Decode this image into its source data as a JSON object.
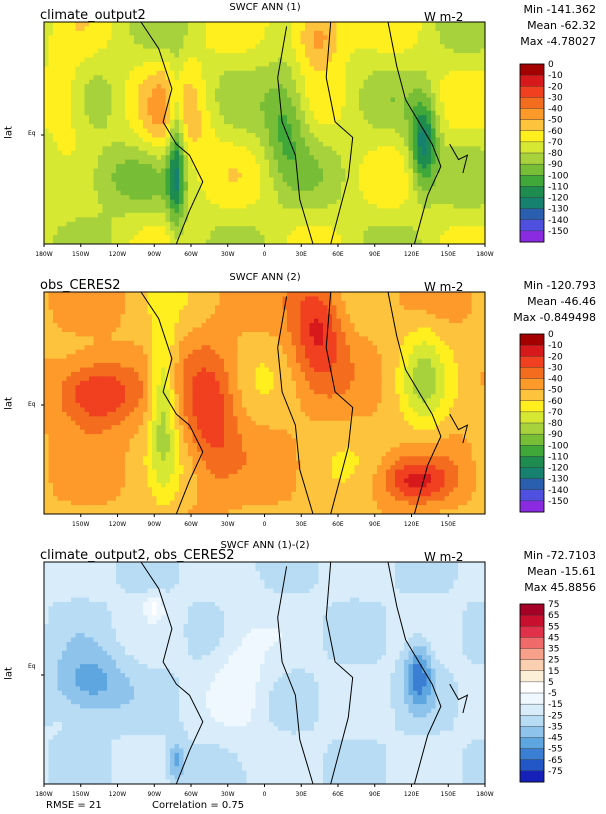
{
  "chart_data": [
    {
      "type": "heatmap",
      "left_title": "climate_output2",
      "title": "SWCF ANN (1)",
      "units": "W m-2",
      "stats": {
        "min": "Min -141.362",
        "mean": "Mean -62.32",
        "max": "Max -4.78027"
      },
      "ylabel": "lat",
      "eq_label": "Eq",
      "x_ticks": [
        "180W",
        "150W",
        "120W",
        "90W",
        "60W",
        "30W",
        "0",
        "30E",
        "60E",
        "90E",
        "120E",
        "150E",
        "180W"
      ],
      "colorbar": {
        "labels": [
          "0",
          "-10",
          "-20",
          "-30",
          "-40",
          "-50",
          "-60",
          "-70",
          "-80",
          "-90",
          "-100",
          "-110",
          "-120",
          "-130",
          "-140",
          "-150"
        ],
        "colors": [
          "#a50000",
          "#d7191c",
          "#f04020",
          "#f46d1e",
          "#fd9a2a",
          "#fdc33c",
          "#ffef1e",
          "#d6e832",
          "#a8d23c",
          "#78bd36",
          "#3fa838",
          "#1e8c4e",
          "#16816e",
          "#2a5fb0",
          "#4f4fe0",
          "#8a2be2"
        ]
      },
      "field": "abs"
    },
    {
      "type": "heatmap",
      "left_title": "obs_CERES2",
      "title": "SWCF ANN (2)",
      "units": "W m-2",
      "stats": {
        "min": "Min -120.793",
        "mean": "Mean -46.46",
        "max": "Max -0.849498"
      },
      "ylabel": "lat",
      "eq_label": "Eq",
      "x_ticks": [
        "150W",
        "120W",
        "90W",
        "60W",
        "30W",
        "0",
        "30E",
        "60E",
        "90E",
        "120E",
        "150E"
      ],
      "colorbar": {
        "labels": [
          "0",
          "-10",
          "-20",
          "-30",
          "-40",
          "-50",
          "-60",
          "-70",
          "-80",
          "-90",
          "-100",
          "-110",
          "-120",
          "-130",
          "-140",
          "-150"
        ],
        "colors": [
          "#a50000",
          "#d7191c",
          "#f04020",
          "#f46d1e",
          "#fd9a2a",
          "#fdc33c",
          "#ffef1e",
          "#d6e832",
          "#a8d23c",
          "#78bd36",
          "#3fa838",
          "#1e8c4e",
          "#16816e",
          "#2a5fb0",
          "#4f4fe0",
          "#8a2be2"
        ]
      },
      "field": "obs"
    },
    {
      "type": "heatmap",
      "left_title": "climate_output2, obs_CERES2",
      "title": "SWCF ANN (1)-(2)",
      "units": "W m-2",
      "stats": {
        "min": "Min -72.7103",
        "mean": "Mean -15.61",
        "max": "Max 45.8856"
      },
      "ylabel": "lat",
      "eq_label": "Eq",
      "x_ticks": [
        "180W",
        "150W",
        "120W",
        "90W",
        "60W",
        "30W",
        "0",
        "30E",
        "60E",
        "90E",
        "120E",
        "150E",
        "180W"
      ],
      "colorbar": {
        "labels": [
          "75",
          "65",
          "55",
          "45",
          "35",
          "25",
          "15",
          "5",
          "-5",
          "-15",
          "-25",
          "-35",
          "-45",
          "-55",
          "-65",
          "-75"
        ],
        "colors": [
          "#a50026",
          "#c8102e",
          "#e0304a",
          "#f06a6a",
          "#f7a08a",
          "#fbd0b0",
          "#fdf0d8",
          "#ffffff",
          "#f0f8ff",
          "#d8ecfa",
          "#b7dcf4",
          "#8ec3ec",
          "#5ea6e0",
          "#3b7fd4",
          "#2356c6",
          "#1520b8"
        ]
      },
      "field": "diff",
      "footer": {
        "rmse": "RMSE = 21",
        "correlation": "Correlation = 0.75"
      }
    }
  ]
}
